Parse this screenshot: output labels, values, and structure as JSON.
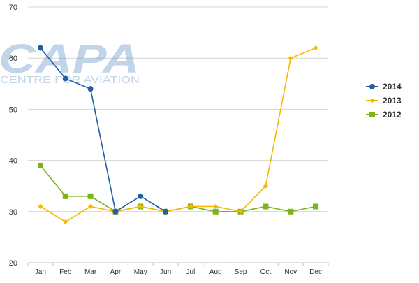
{
  "watermark": {
    "logo_text": "CAPA",
    "tagline": "CENTRE FOR AVIATION"
  },
  "chart_data": {
    "type": "line",
    "title": "",
    "xlabel": "",
    "ylabel": "",
    "categories": [
      "Jan",
      "Feb",
      "Mar",
      "Apr",
      "May",
      "Jun",
      "Jul",
      "Aug",
      "Sep",
      "Oct",
      "Nov",
      "Dec"
    ],
    "ylim": [
      20,
      70
    ],
    "yticks": [
      20,
      30,
      40,
      50,
      60,
      70
    ],
    "grid": "horizontal",
    "legend_position": "right",
    "series": [
      {
        "name": "2014",
        "color": "#1f5fa6",
        "marker": "circle",
        "values": [
          62,
          56,
          54,
          30,
          33,
          30,
          null,
          null,
          null,
          null,
          null,
          null
        ]
      },
      {
        "name": "2013",
        "color": "#f5b800",
        "marker": "diamond",
        "values": [
          31,
          28,
          31,
          30,
          31,
          30,
          31,
          31,
          30,
          35,
          60,
          62
        ]
      },
      {
        "name": "2012",
        "color": "#7cb518",
        "marker": "square",
        "values": [
          39,
          33,
          33,
          30,
          31,
          30,
          31,
          30,
          30,
          31,
          30,
          31
        ]
      }
    ]
  }
}
